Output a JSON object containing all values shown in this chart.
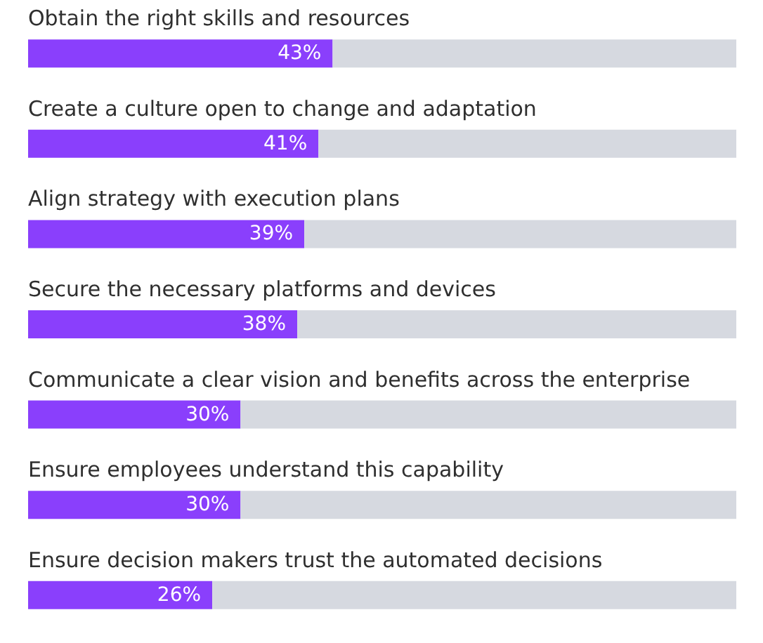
{
  "chart_data": {
    "type": "bar",
    "orientation": "horizontal",
    "stacked": true,
    "categories": [
      "Obtain the right skills and resources",
      "Create a culture open to change and adaptation",
      "Align strategy with execution plans",
      "Secure the necessary platforms and devices",
      "Communicate a clear vision and benefits across the enterprise",
      "Ensure employees understand this capability",
      "Ensure decision makers trust the automated decisions"
    ],
    "series": [
      {
        "color": "#8a3ffc",
        "values": [
          43,
          41,
          39,
          38,
          30,
          30,
          26
        ],
        "value_labels": [
          "43%",
          "41%",
          "39%",
          "38%",
          "30%",
          "30%",
          "26%"
        ]
      },
      {
        "color": "#d6d9e0",
        "values": [
          57,
          59,
          61,
          62,
          70,
          70,
          74
        ]
      }
    ],
    "xlim": [
      0,
      100
    ],
    "tick_labels": false
  }
}
